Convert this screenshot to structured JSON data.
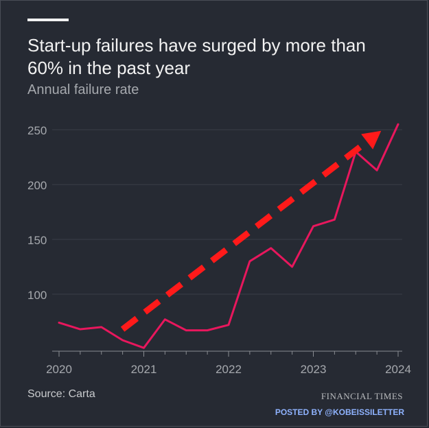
{
  "header": {
    "title": "Start-up failures have surged by more than 60% in the past year",
    "subtitle": "Annual failure rate"
  },
  "footer": {
    "source": "Source: Carta",
    "brand": "FINANCIAL TIMES",
    "credit": "POSTED BY @KOBEISSILETTER"
  },
  "colors": {
    "background": "#262a33",
    "series_line": "#e8175d",
    "trend_arrow": "#ff1a1a",
    "grid": "#3b3f48",
    "tick_text": "#a6a9ae"
  },
  "chart_data": {
    "type": "line",
    "title": "Start-up failures have surged by more than 60% in the past year",
    "subtitle": "Annual failure rate",
    "xlabel": "",
    "ylabel": "",
    "xlim": [
      2020,
      2024
    ],
    "ylim": [
      48,
      262
    ],
    "yticks": [
      100,
      150,
      200,
      250
    ],
    "xticks": [
      2020,
      2021,
      2022,
      2023,
      2024
    ],
    "grid": true,
    "series": [
      {
        "x": [
          2020,
          2020.25,
          2020.5,
          2020.75,
          2021,
          2021.25,
          2021.5,
          2021.75,
          2022,
          2022.25,
          2022.5,
          2022.75,
          2023,
          2023.25,
          2023.5,
          2023.75,
          2024
        ],
        "values": [
          74,
          68,
          70,
          58,
          51,
          77,
          67,
          67,
          72,
          130,
          142,
          125,
          162,
          168,
          230,
          213,
          255
        ]
      }
    ],
    "annotations": [
      {
        "type": "trend-arrow",
        "from": [
          2020.75,
          68
        ],
        "to": [
          2023.8,
          249
        ]
      }
    ]
  }
}
